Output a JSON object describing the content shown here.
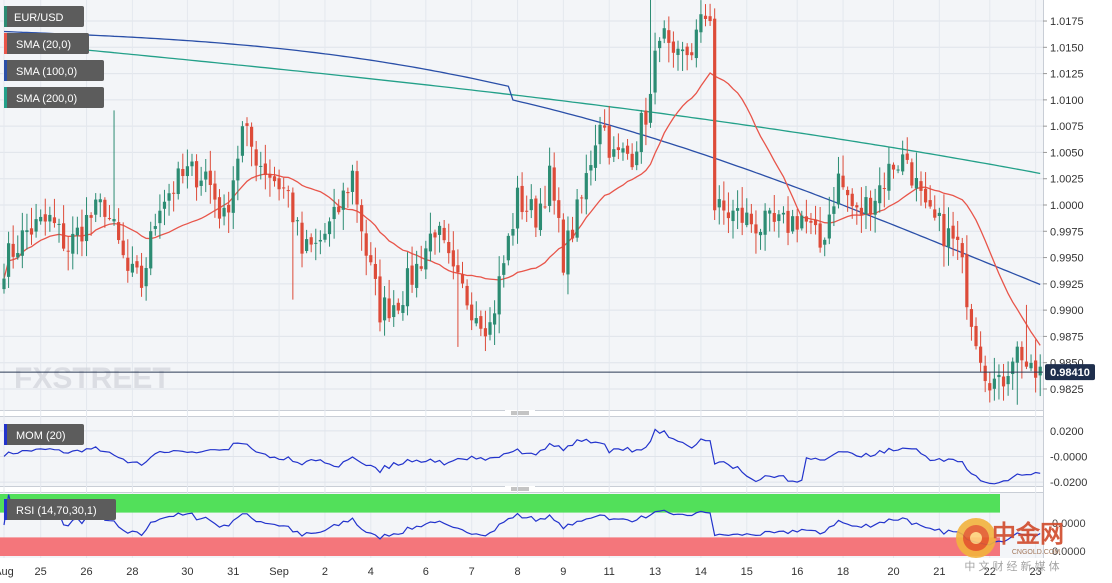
{
  "chart_data": {
    "type": "candlestick",
    "symbol": "EUR/USD",
    "watermark": "FXSTREET",
    "last_price": "0.98410",
    "price_axis": {
      "ylim": [
        0.9805,
        1.0195
      ],
      "ticks": [
        "1.0175",
        "1.0150",
        "1.0125",
        "1.0100",
        "1.0075",
        "1.0050",
        "1.0025",
        "1.0000",
        "0.9975",
        "0.9950",
        "0.9925",
        "0.9900",
        "0.9875",
        "0.9850",
        "0.9825"
      ]
    },
    "x_ticks": [
      {
        "i": 0,
        "label": "Aug"
      },
      {
        "i": 8,
        "label": "25"
      },
      {
        "i": 18,
        "label": "26"
      },
      {
        "i": 28,
        "label": "28"
      },
      {
        "i": 40,
        "label": "30"
      },
      {
        "i": 50,
        "label": "31"
      },
      {
        "i": 60,
        "label": "Sep"
      },
      {
        "i": 70,
        "label": "2"
      },
      {
        "i": 80,
        "label": "4"
      },
      {
        "i": 92,
        "label": "6"
      },
      {
        "i": 102,
        "label": "7"
      },
      {
        "i": 112,
        "label": "8"
      },
      {
        "i": 122,
        "label": "9"
      },
      {
        "i": 132,
        "label": "11"
      },
      {
        "i": 142,
        "label": "13"
      },
      {
        "i": 152,
        "label": "14"
      },
      {
        "i": 162,
        "label": "15"
      },
      {
        "i": 173,
        "label": "16"
      },
      {
        "i": 183,
        "label": "18"
      },
      {
        "i": 194,
        "label": "20"
      },
      {
        "i": 204,
        "label": "21"
      },
      {
        "i": 215,
        "label": "22"
      },
      {
        "i": 225,
        "label": "23"
      }
    ],
    "indicators": [
      {
        "name": "SMA (20,0)",
        "color": "#e8554a"
      },
      {
        "name": "SMA (100,0)",
        "color": "#2a4fa8"
      },
      {
        "name": "SMA (200,0)",
        "color": "#23a089"
      }
    ],
    "mom": {
      "name": "MOM (20)",
      "ticks": [
        "0.0200",
        "-0.0000",
        "-0.0200"
      ],
      "ylim": [
        -0.0215,
        0.03
      ],
      "color": "#2233cc"
    },
    "rsi": {
      "name": "RSI (14,70,30,1)",
      "upper": 70,
      "lower": 30,
      "label_up": "0.0000",
      "label_dn": "0.0000",
      "color": "#2233cc"
    },
    "candle_colors": {
      "up": "#2c8c73",
      "down": "#dd4b39"
    },
    "anchors": [
      [
        0,
        0.9945
      ],
      [
        5,
        0.9975
      ],
      [
        10,
        0.9985
      ],
      [
        14,
        0.996
      ],
      [
        18,
        0.9985
      ],
      [
        22,
        1.0
      ],
      [
        27,
        0.9935
      ],
      [
        30,
        0.9925
      ],
      [
        34,
        1.0005
      ],
      [
        40,
        1.003
      ],
      [
        44,
        1.003
      ],
      [
        48,
        0.9985
      ],
      [
        52,
        1.007
      ],
      [
        56,
        1.004
      ],
      [
        60,
        1.002
      ],
      [
        62,
        1.001
      ],
      [
        65,
        0.9955
      ],
      [
        68,
        0.996
      ],
      [
        72,
        0.9985
      ],
      [
        76,
        1.003
      ],
      [
        79,
        0.9955
      ],
      [
        82,
        0.99
      ],
      [
        86,
        0.991
      ],
      [
        90,
        0.994
      ],
      [
        94,
        0.998
      ],
      [
        98,
        0.993
      ],
      [
        102,
        0.9905
      ],
      [
        106,
        0.9885
      ],
      [
        108,
        0.9925
      ],
      [
        112,
        1.0005
      ],
      [
        116,
        0.999
      ],
      [
        119,
        1.0025
      ],
      [
        122,
        0.995
      ],
      [
        126,
        1.0005
      ],
      [
        130,
        1.0085
      ],
      [
        133,
        1.0045
      ],
      [
        137,
        1.005
      ],
      [
        141,
        1.01
      ],
      [
        143,
        1.017
      ],
      [
        146,
        1.013
      ],
      [
        150,
        1.015
      ],
      [
        153,
        1.018
      ],
      [
        155,
        0.9995
      ],
      [
        160,
        0.999
      ],
      [
        165,
        0.998
      ],
      [
        170,
        0.998
      ],
      [
        174,
        0.999
      ],
      [
        178,
        0.996
      ],
      [
        182,
        1.0025
      ],
      [
        186,
        0.999
      ],
      [
        190,
        1.001
      ],
      [
        194,
        1.004
      ],
      [
        197,
        1.0045
      ],
      [
        201,
        0.999
      ],
      [
        205,
        0.9975
      ],
      [
        208,
        0.996
      ],
      [
        211,
        0.9895
      ],
      [
        214,
        0.9845
      ],
      [
        217,
        0.9825
      ],
      [
        220,
        0.986
      ],
      [
        222,
        0.986
      ],
      [
        224,
        0.9835
      ],
      [
        226,
        0.9841
      ]
    ]
  }
}
